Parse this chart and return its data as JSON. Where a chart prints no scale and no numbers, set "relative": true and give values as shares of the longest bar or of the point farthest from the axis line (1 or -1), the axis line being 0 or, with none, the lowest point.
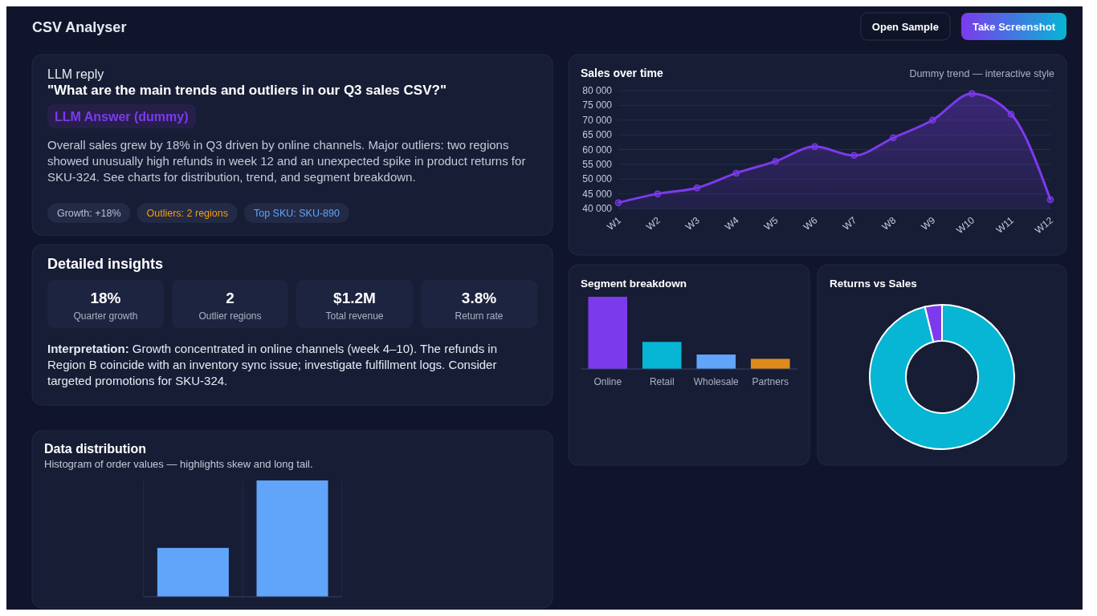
{
  "chart_data": [
    {
      "type": "other",
      "title": "CSV Analyser",
      "annotations": [
        "Open Sample",
        "Take Screenshot",
        "LLM reply",
        "\"What are the main trends and outliers in our Q3 sales CSV?\"",
        "LLM Answer (dummy)",
        "Overall sales grew by 18% in Q3 driven by online channels. Major outliers: two regions showed unusually high refunds in week 12 and an unexpected spike in product returns for SKU-324. See charts for distribution, trend, and segment breakdown.",
        "Growth: +18%",
        "Outliers: 2 regions",
        "Top SKU: SKU-890"
      ]
    },
    {
      "type": "other",
      "title": "Detailed insights",
      "annotations": [
        "18%",
        "Quarter growth",
        "2",
        "Outlier regions",
        "$1.2M",
        "Total revenue",
        "3.8%",
        "Return rate",
        "Interpretation:",
        "Growth concentrated in online channels (week 4–10). The refunds in Region B coincide with an inventory sync issue; investigate fulfillment logs. Consider targeted promotions for SKU-324."
      ]
    },
    {
      "type": "area",
      "title": "Sales over time",
      "subtitle": "Dummy trend — interactive style",
      "categories": [
        "W1",
        "W2",
        "W3",
        "W4",
        "W5",
        "W6",
        "W7",
        "W8",
        "W9",
        "W10",
        "W11",
        "W12"
      ],
      "values": [
        42000,
        45000,
        47000,
        52000,
        56000,
        61000,
        58000,
        64000,
        70000,
        79000,
        72000,
        43000
      ],
      "color": "#7c3aed",
      "marker": "circle",
      "grid": "y",
      "ylim": [
        40000,
        80000
      ],
      "yticks": [
        {
          "value": 40000,
          "label": "40 000"
        },
        {
          "value": 45000,
          "label": "45 000"
        },
        {
          "value": 50000,
          "label": "50 000"
        },
        {
          "value": 55000,
          "label": "55 000"
        },
        {
          "value": 60000,
          "label": "60 000"
        },
        {
          "value": 65000,
          "label": "65 000"
        },
        {
          "value": 70000,
          "label": "70 000"
        },
        {
          "value": 75000,
          "label": "75 000"
        },
        {
          "value": 80000,
          "label": "80 000"
        }
      ]
    },
    {
      "type": "bar",
      "title": "Segment breakdown",
      "categories": [
        "Online",
        "Retail",
        "Wholesale",
        "Partners"
      ],
      "values": [
        1,
        0.375,
        0.2,
        0.14
      ],
      "colors": [
        "#7c3aed",
        "#06b6d4",
        "#60a5fa",
        "#e08a1e"
      ],
      "relative": true
    },
    {
      "type": "donut",
      "title": "Returns vs Sales",
      "categories": [
        null,
        null
      ],
      "values": [
        96.2,
        3.8
      ],
      "colors": [
        "#06b6d4",
        "#7c3aed"
      ]
    },
    {
      "type": "bar",
      "title": "Data distribution",
      "subtitle": "Histogram of order values — highlights skew and long tail.",
      "categories": [
        null,
        null
      ],
      "values": [
        0.42,
        1
      ],
      "color": "#60a5fa",
      "relative": true,
      "grid": "x"
    }
  ]
}
